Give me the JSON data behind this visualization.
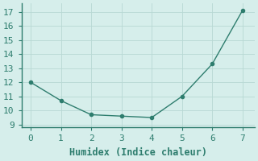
{
  "x": [
    0,
    1,
    2,
    3,
    4,
    5,
    6,
    7
  ],
  "y": [
    12.0,
    10.7,
    9.7,
    9.6,
    9.5,
    11.0,
    13.3,
    17.1
  ],
  "line_color": "#2e7d6e",
  "marker": "o",
  "marker_size": 3,
  "background_color": "#d6eeeb",
  "grid_color": "#b8d8d4",
  "xlabel": "Humidex (Indice chaleur)",
  "xlabel_fontsize": 8.5,
  "tick_fontsize": 8,
  "xlim": [
    -0.3,
    7.4
  ],
  "ylim": [
    8.8,
    17.6
  ],
  "yticks": [
    9,
    10,
    11,
    12,
    13,
    14,
    15,
    16,
    17
  ],
  "xticks": [
    0,
    1,
    2,
    3,
    4,
    5,
    6,
    7
  ],
  "line_width": 1.0,
  "spine_color": "#2e7d6e",
  "tick_color": "#2e7d6e"
}
